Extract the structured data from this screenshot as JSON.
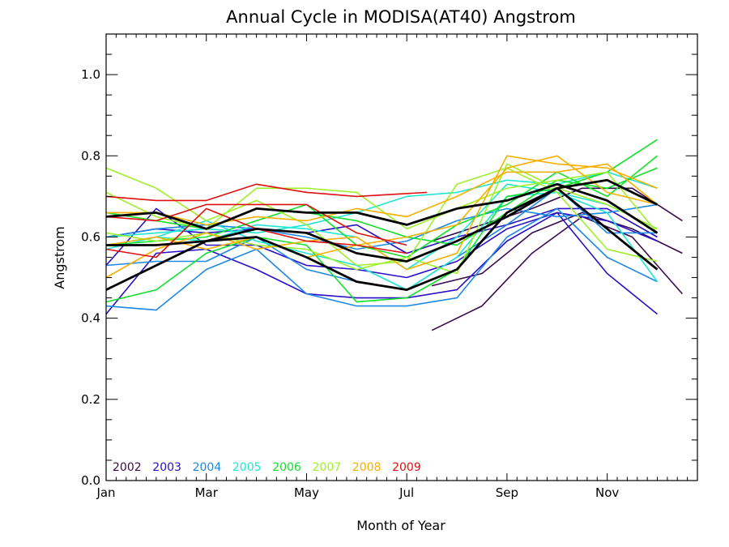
{
  "chart_data": {
    "type": "line",
    "title": "Annual Cycle in MODISA(AT40) Angstrom",
    "xlabel": "Month of Year",
    "ylabel": "Angstrom",
    "xlim": [
      1,
      12.8
    ],
    "ylim": [
      0.0,
      1.1
    ],
    "x_ticks": [
      {
        "value": 1,
        "label": "Jan"
      },
      {
        "value": 3,
        "label": "Mar"
      },
      {
        "value": 5,
        "label": "May"
      },
      {
        "value": 7,
        "label": "Jul"
      },
      {
        "value": 9,
        "label": "Sep"
      },
      {
        "value": 11,
        "label": "Nov"
      }
    ],
    "y_ticks": [
      {
        "value": 0.0,
        "label": "0.0"
      },
      {
        "value": 0.2,
        "label": "0.2"
      },
      {
        "value": 0.4,
        "label": "0.4"
      },
      {
        "value": 0.6,
        "label": "0.6"
      },
      {
        "value": 0.8,
        "label": "0.8"
      },
      {
        "value": 1.0,
        "label": "1.0"
      }
    ],
    "x_minor_step": 0.2,
    "y_minor_step": 0.05,
    "grid": false,
    "legend_position": "bottom-left",
    "legend": [
      {
        "label": "2002",
        "color": "#3a0a4e"
      },
      {
        "label": "2003",
        "color": "#2a10c8"
      },
      {
        "label": "2004",
        "color": "#1e88e5"
      },
      {
        "label": "2005",
        "color": "#20e6d2"
      },
      {
        "label": "2006",
        "color": "#10e22a"
      },
      {
        "label": "2007",
        "color": "#9ef02a"
      },
      {
        "label": "2008",
        "color": "#f5b000"
      },
      {
        "label": "2009",
        "color": "#e01010"
      }
    ],
    "series": [
      {
        "color": "#3a0a4e",
        "x": [
          7.5,
          8.5,
          9.5,
          10.5,
          11.5,
          12.5
        ],
        "values": [
          0.37,
          0.43,
          0.56,
          0.65,
          0.6,
          0.46
        ]
      },
      {
        "color": "#3a0a4e",
        "x": [
          7.5,
          8.5,
          9.5,
          10.5,
          11.5,
          12.5
        ],
        "values": [
          0.48,
          0.51,
          0.61,
          0.66,
          0.62,
          0.56
        ]
      },
      {
        "color": "#3a0a4e",
        "x": [
          7.5,
          8.5,
          9.5,
          10.5,
          11.5,
          12.5
        ],
        "values": [
          0.59,
          0.63,
          0.67,
          0.72,
          0.72,
          0.64
        ]
      },
      {
        "color": "#2a10c8",
        "x": [
          1,
          2,
          3,
          4,
          5,
          6,
          7,
          8,
          9,
          10,
          11,
          12
        ],
        "values": [
          0.41,
          0.56,
          0.57,
          0.52,
          0.46,
          0.45,
          0.45,
          0.47,
          0.59,
          0.66,
          0.51,
          0.41
        ]
      },
      {
        "color": "#2a10c8",
        "x": [
          1,
          2,
          3,
          4,
          5,
          6,
          7,
          8,
          9,
          10,
          11,
          12
        ],
        "values": [
          0.53,
          0.67,
          0.58,
          0.58,
          0.53,
          0.52,
          0.5,
          0.54,
          0.62,
          0.66,
          0.64,
          0.59
        ]
      },
      {
        "color": "#2a10c8",
        "x": [
          1,
          2,
          3,
          4,
          5,
          6,
          7,
          8,
          9,
          10,
          11,
          12
        ],
        "values": [
          0.6,
          0.62,
          0.61,
          0.62,
          0.61,
          0.63,
          0.56,
          0.6,
          0.63,
          0.67,
          0.67,
          0.6
        ]
      },
      {
        "color": "#1e88e5",
        "x": [
          1,
          2,
          3,
          4,
          5,
          6,
          7,
          8,
          9,
          10,
          11,
          12
        ],
        "values": [
          0.43,
          0.42,
          0.52,
          0.57,
          0.46,
          0.43,
          0.43,
          0.45,
          0.6,
          0.67,
          0.55,
          0.49
        ]
      },
      {
        "color": "#1e88e5",
        "x": [
          1,
          2,
          3,
          4,
          5,
          6,
          7,
          8,
          9,
          10,
          11,
          12
        ],
        "values": [
          0.53,
          0.54,
          0.54,
          0.6,
          0.52,
          0.49,
          0.47,
          0.55,
          0.63,
          0.72,
          0.61,
          0.61
        ]
      },
      {
        "color": "#1e88e5",
        "x": [
          1,
          2,
          3,
          4,
          5,
          6,
          7,
          8,
          9,
          10,
          11,
          12
        ],
        "values": [
          0.6,
          0.62,
          0.63,
          0.62,
          0.6,
          0.57,
          0.59,
          0.64,
          0.67,
          0.65,
          0.66,
          0.68
        ]
      },
      {
        "color": "#20e6d2",
        "x": [
          1,
          2,
          3,
          4,
          5,
          6,
          7,
          8,
          9,
          10,
          11,
          12
        ],
        "values": [
          0.57,
          0.6,
          0.64,
          0.59,
          0.56,
          0.53,
          0.47,
          0.55,
          0.7,
          0.71,
          0.66,
          0.49
        ]
      },
      {
        "color": "#20e6d2",
        "x": [
          1,
          2,
          3,
          4,
          5,
          6,
          7,
          8,
          9,
          10,
          11,
          12
        ],
        "values": [
          0.58,
          0.6,
          0.59,
          0.63,
          0.62,
          0.6,
          0.52,
          0.6,
          0.73,
          0.71,
          0.68,
          0.62
        ]
      },
      {
        "color": "#20e6d2",
        "x": [
          1,
          2,
          3,
          4,
          5,
          6,
          7,
          8,
          9,
          10,
          11,
          12
        ],
        "values": [
          0.6,
          0.61,
          0.62,
          0.61,
          0.63,
          0.66,
          0.7,
          0.71,
          0.74,
          0.73,
          0.76,
          0.72
        ]
      },
      {
        "color": "#10e22a",
        "x": [
          1,
          2,
          3,
          4,
          5,
          6,
          7,
          8,
          9,
          10,
          11,
          12
        ],
        "values": [
          0.44,
          0.47,
          0.56,
          0.6,
          0.58,
          0.44,
          0.45,
          0.52,
          0.7,
          0.72,
          0.76,
          0.84
        ]
      },
      {
        "color": "#10e22a",
        "x": [
          1,
          2,
          3,
          4,
          5,
          6,
          7,
          8,
          9,
          10,
          11,
          12
        ],
        "values": [
          0.58,
          0.59,
          0.6,
          0.64,
          0.68,
          0.58,
          0.55,
          0.63,
          0.68,
          0.76,
          0.7,
          0.8
        ]
      },
      {
        "color": "#10e22a",
        "x": [
          1,
          2,
          3,
          4,
          5,
          6,
          7,
          8,
          9,
          10,
          11,
          12
        ],
        "values": [
          0.66,
          0.64,
          0.62,
          0.67,
          0.66,
          0.64,
          0.6,
          0.58,
          0.66,
          0.74,
          0.72,
          0.77
        ]
      },
      {
        "color": "#9ef02a",
        "x": [
          1,
          2,
          3,
          4,
          5,
          6,
          7,
          8,
          9,
          10,
          11,
          12
        ],
        "values": [
          0.77,
          0.72,
          0.64,
          0.69,
          0.63,
          0.53,
          0.54,
          0.73,
          0.77,
          0.71,
          0.57,
          0.54
        ]
      },
      {
        "color": "#9ef02a",
        "x": [
          1,
          2,
          3,
          4,
          5,
          6,
          7,
          8,
          9,
          10,
          11,
          12
        ],
        "values": [
          0.71,
          0.65,
          0.62,
          0.72,
          0.72,
          0.71,
          0.62,
          0.67,
          0.72,
          0.74,
          0.76,
          0.61
        ]
      },
      {
        "color": "#9ef02a",
        "x": [
          1,
          2,
          3,
          4,
          5,
          6,
          7,
          8,
          9,
          10,
          11,
          12
        ],
        "values": [
          0.61,
          0.59,
          0.61,
          0.58,
          0.57,
          0.52,
          0.55,
          0.51,
          0.78,
          0.72,
          0.68,
          0.62
        ]
      },
      {
        "color": "#f5b000",
        "x": [
          1,
          2,
          3,
          4,
          5,
          6,
          7,
          8,
          9,
          10,
          11,
          12
        ],
        "values": [
          0.5,
          0.57,
          0.61,
          0.57,
          0.59,
          0.6,
          0.52,
          0.56,
          0.8,
          0.78,
          0.77,
          0.72
        ]
      },
      {
        "color": "#f5b000",
        "x": [
          1,
          2,
          3,
          4,
          5,
          6,
          7,
          8,
          9,
          10,
          11,
          12
        ],
        "values": [
          0.58,
          0.6,
          0.57,
          0.6,
          0.55,
          0.58,
          0.6,
          0.63,
          0.77,
          0.8,
          0.71,
          0.68
        ]
      },
      {
        "color": "#f5b000",
        "x": [
          1,
          2,
          3,
          4,
          5,
          6,
          7,
          8,
          9,
          10,
          11,
          12
        ],
        "values": [
          0.66,
          0.66,
          0.63,
          0.65,
          0.64,
          0.67,
          0.65,
          0.7,
          0.76,
          0.76,
          0.78,
          0.68
        ]
      },
      {
        "color": "#e01010",
        "x": [
          1,
          2,
          3,
          4,
          5,
          6,
          7.4
        ],
        "values": [
          0.7,
          0.69,
          0.69,
          0.73,
          0.71,
          0.7,
          0.71
        ]
      },
      {
        "color": "#e01010",
        "x": [
          1,
          2,
          3,
          4,
          5,
          6,
          7
        ],
        "values": [
          0.65,
          0.64,
          0.68,
          0.68,
          0.68,
          0.61,
          0.58
        ]
      },
      {
        "color": "#e01010",
        "x": [
          1,
          2,
          3,
          4,
          5,
          6,
          7
        ],
        "values": [
          0.57,
          0.55,
          0.67,
          0.62,
          0.59,
          0.58,
          0.56
        ]
      },
      {
        "color": "#000000",
        "width": 2.8,
        "x": [
          1,
          2,
          3,
          4,
          5,
          6,
          7,
          8,
          9,
          10,
          11,
          12
        ],
        "values": [
          0.65,
          0.66,
          0.62,
          0.67,
          0.66,
          0.66,
          0.63,
          0.67,
          0.69,
          0.73,
          0.69,
          0.61
        ]
      },
      {
        "color": "#000000",
        "width": 2.8,
        "x": [
          1,
          2,
          3,
          4,
          5,
          6,
          7,
          8,
          9,
          10,
          11,
          12
        ],
        "values": [
          0.58,
          0.58,
          0.59,
          0.62,
          0.61,
          0.56,
          0.54,
          0.59,
          0.65,
          0.72,
          0.74,
          0.68
        ]
      },
      {
        "color": "#000000",
        "width": 2.8,
        "x": [
          1,
          2,
          3,
          4,
          5,
          6,
          7,
          8,
          9,
          10,
          11,
          12
        ],
        "values": [
          0.47,
          0.53,
          0.59,
          0.6,
          0.55,
          0.49,
          0.47,
          0.52,
          0.66,
          0.72,
          0.62,
          0.52
        ]
      }
    ]
  }
}
